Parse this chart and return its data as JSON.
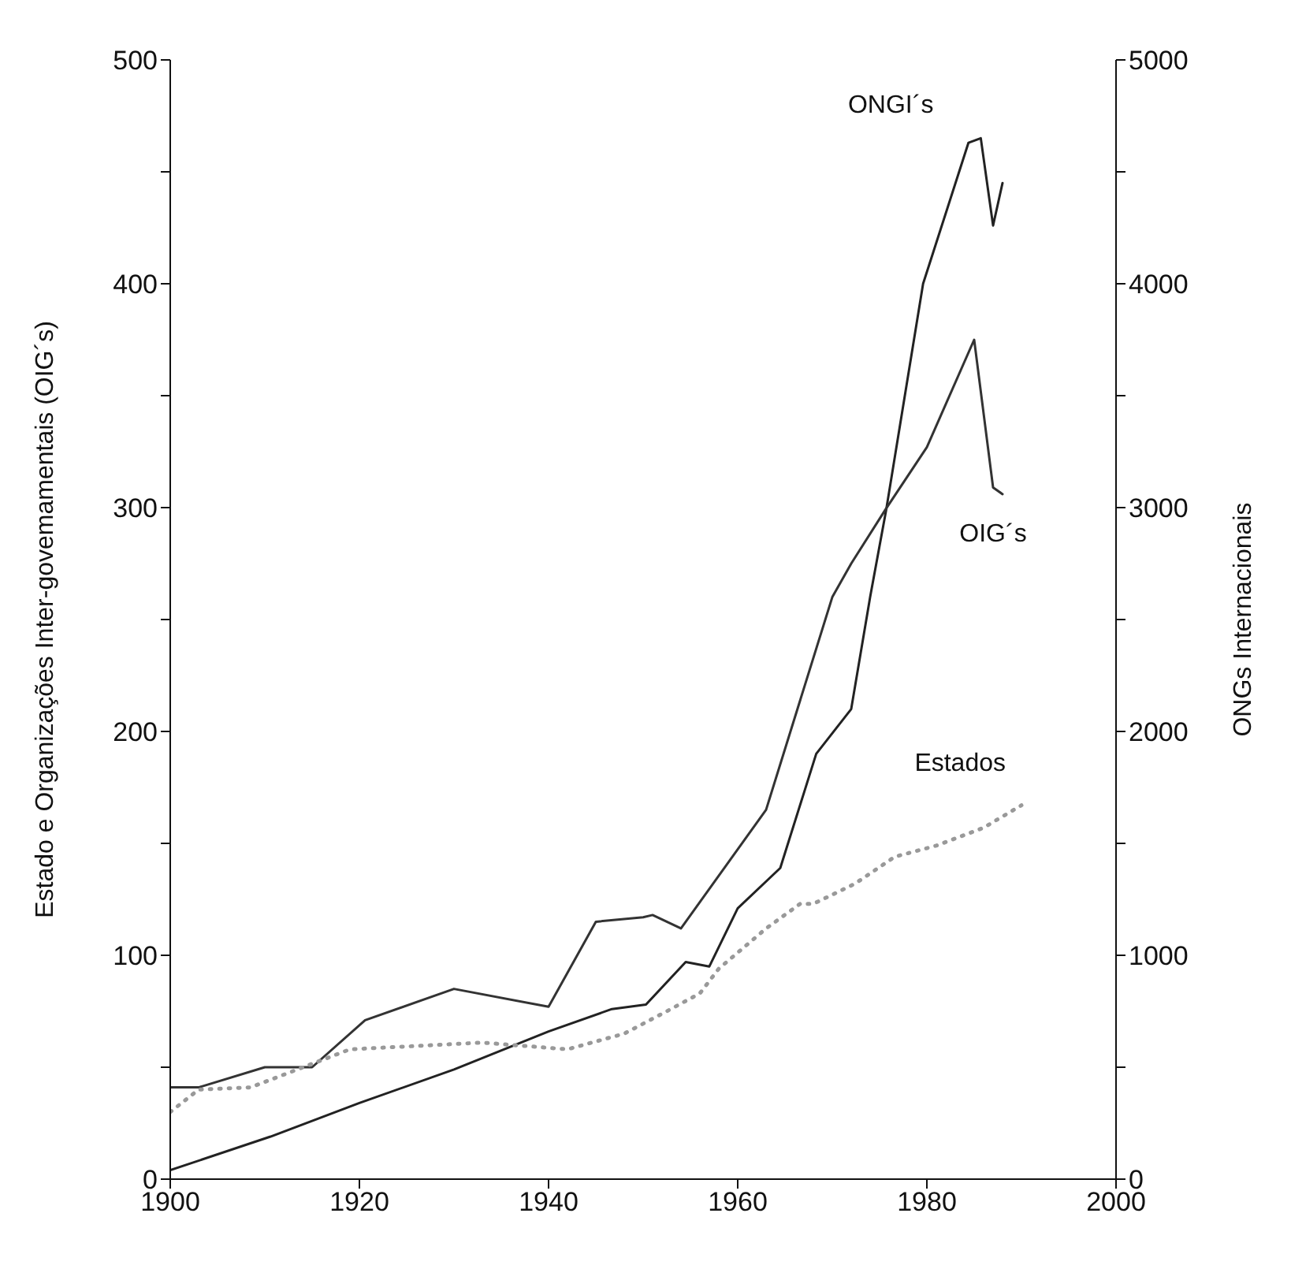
{
  "chart_data": {
    "type": "line",
    "ylabel": "Estado e Organizações Inter-govemamentais (OIG´s)",
    "y2label": "ONGs Internacionais",
    "xlim": [
      1900,
      2000
    ],
    "xticks": [
      1900,
      1920,
      1940,
      1960,
      1980,
      2000
    ],
    "ylim": [
      0,
      500
    ],
    "yticks": [
      0,
      {
        "value": 50,
        "label": null
      },
      100,
      {
        "value": 150,
        "label": null
      },
      200,
      {
        "value": 250,
        "label": null
      },
      300,
      {
        "value": 350,
        "label": null
      },
      400,
      {
        "value": 450,
        "label": null
      },
      500
    ],
    "y2lim": [
      0,
      5000
    ],
    "y2ticks": [
      0,
      {
        "value": 500,
        "label": null
      },
      1000,
      {
        "value": 1500,
        "label": null
      },
      2000,
      {
        "value": 2500,
        "label": null
      },
      3000,
      {
        "value": 3500,
        "label": null
      },
      4000,
      {
        "value": 4500,
        "label": null
      },
      5000
    ],
    "marker": "none",
    "series": [
      {
        "name": "ONGI´s",
        "color": "#222222",
        "axis": "y2",
        "line_style": "solid",
        "x": [
          1900,
          1910.6,
          1920,
          1930,
          1940,
          1946.7,
          1950.3,
          1954.5,
          1957,
          1960,
          1964.5,
          1968.3,
          1972,
          1974,
          1975.7,
          1979.6,
          1984.4,
          1985.7,
          1987,
          1988
        ],
        "values": [
          40,
          190,
          340,
          490,
          660,
          760,
          780,
          970,
          950,
          1210,
          1390,
          1900,
          2100,
          2600,
          2990,
          4000,
          4630,
          4650,
          4260,
          4450
        ]
      },
      {
        "name": "OIG´s",
        "color": "#333333",
        "line_style": "solid",
        "x": [
          1900,
          1903,
          1910,
          1915,
          1920.6,
          1930,
          1940,
          1945,
          1950,
          1951,
          1954,
          1963,
          1970,
          1972,
          1975.6,
          1980,
          1985,
          1987,
          1988
        ],
        "values": [
          41,
          41,
          50,
          50,
          71,
          85,
          77,
          115,
          117,
          118,
          112,
          165,
          260,
          275,
          299,
          327,
          375,
          309,
          306
        ]
      },
      {
        "name": "Estados",
        "color": "#999999",
        "line_style": "dotted",
        "x": [
          1900,
          1903,
          1908.5,
          1919,
          1933,
          1942,
          1948,
          1952.5,
          1956,
          1958,
          1963,
          1966.6,
          1968,
          1972.4,
          1976.6,
          1981,
          1986,
          1990
        ],
        "values": [
          30,
          40,
          41,
          58,
          61,
          58,
          65,
          75,
          83,
          94,
          112,
          123,
          123,
          132,
          144,
          149,
          157,
          167
        ]
      }
    ]
  }
}
